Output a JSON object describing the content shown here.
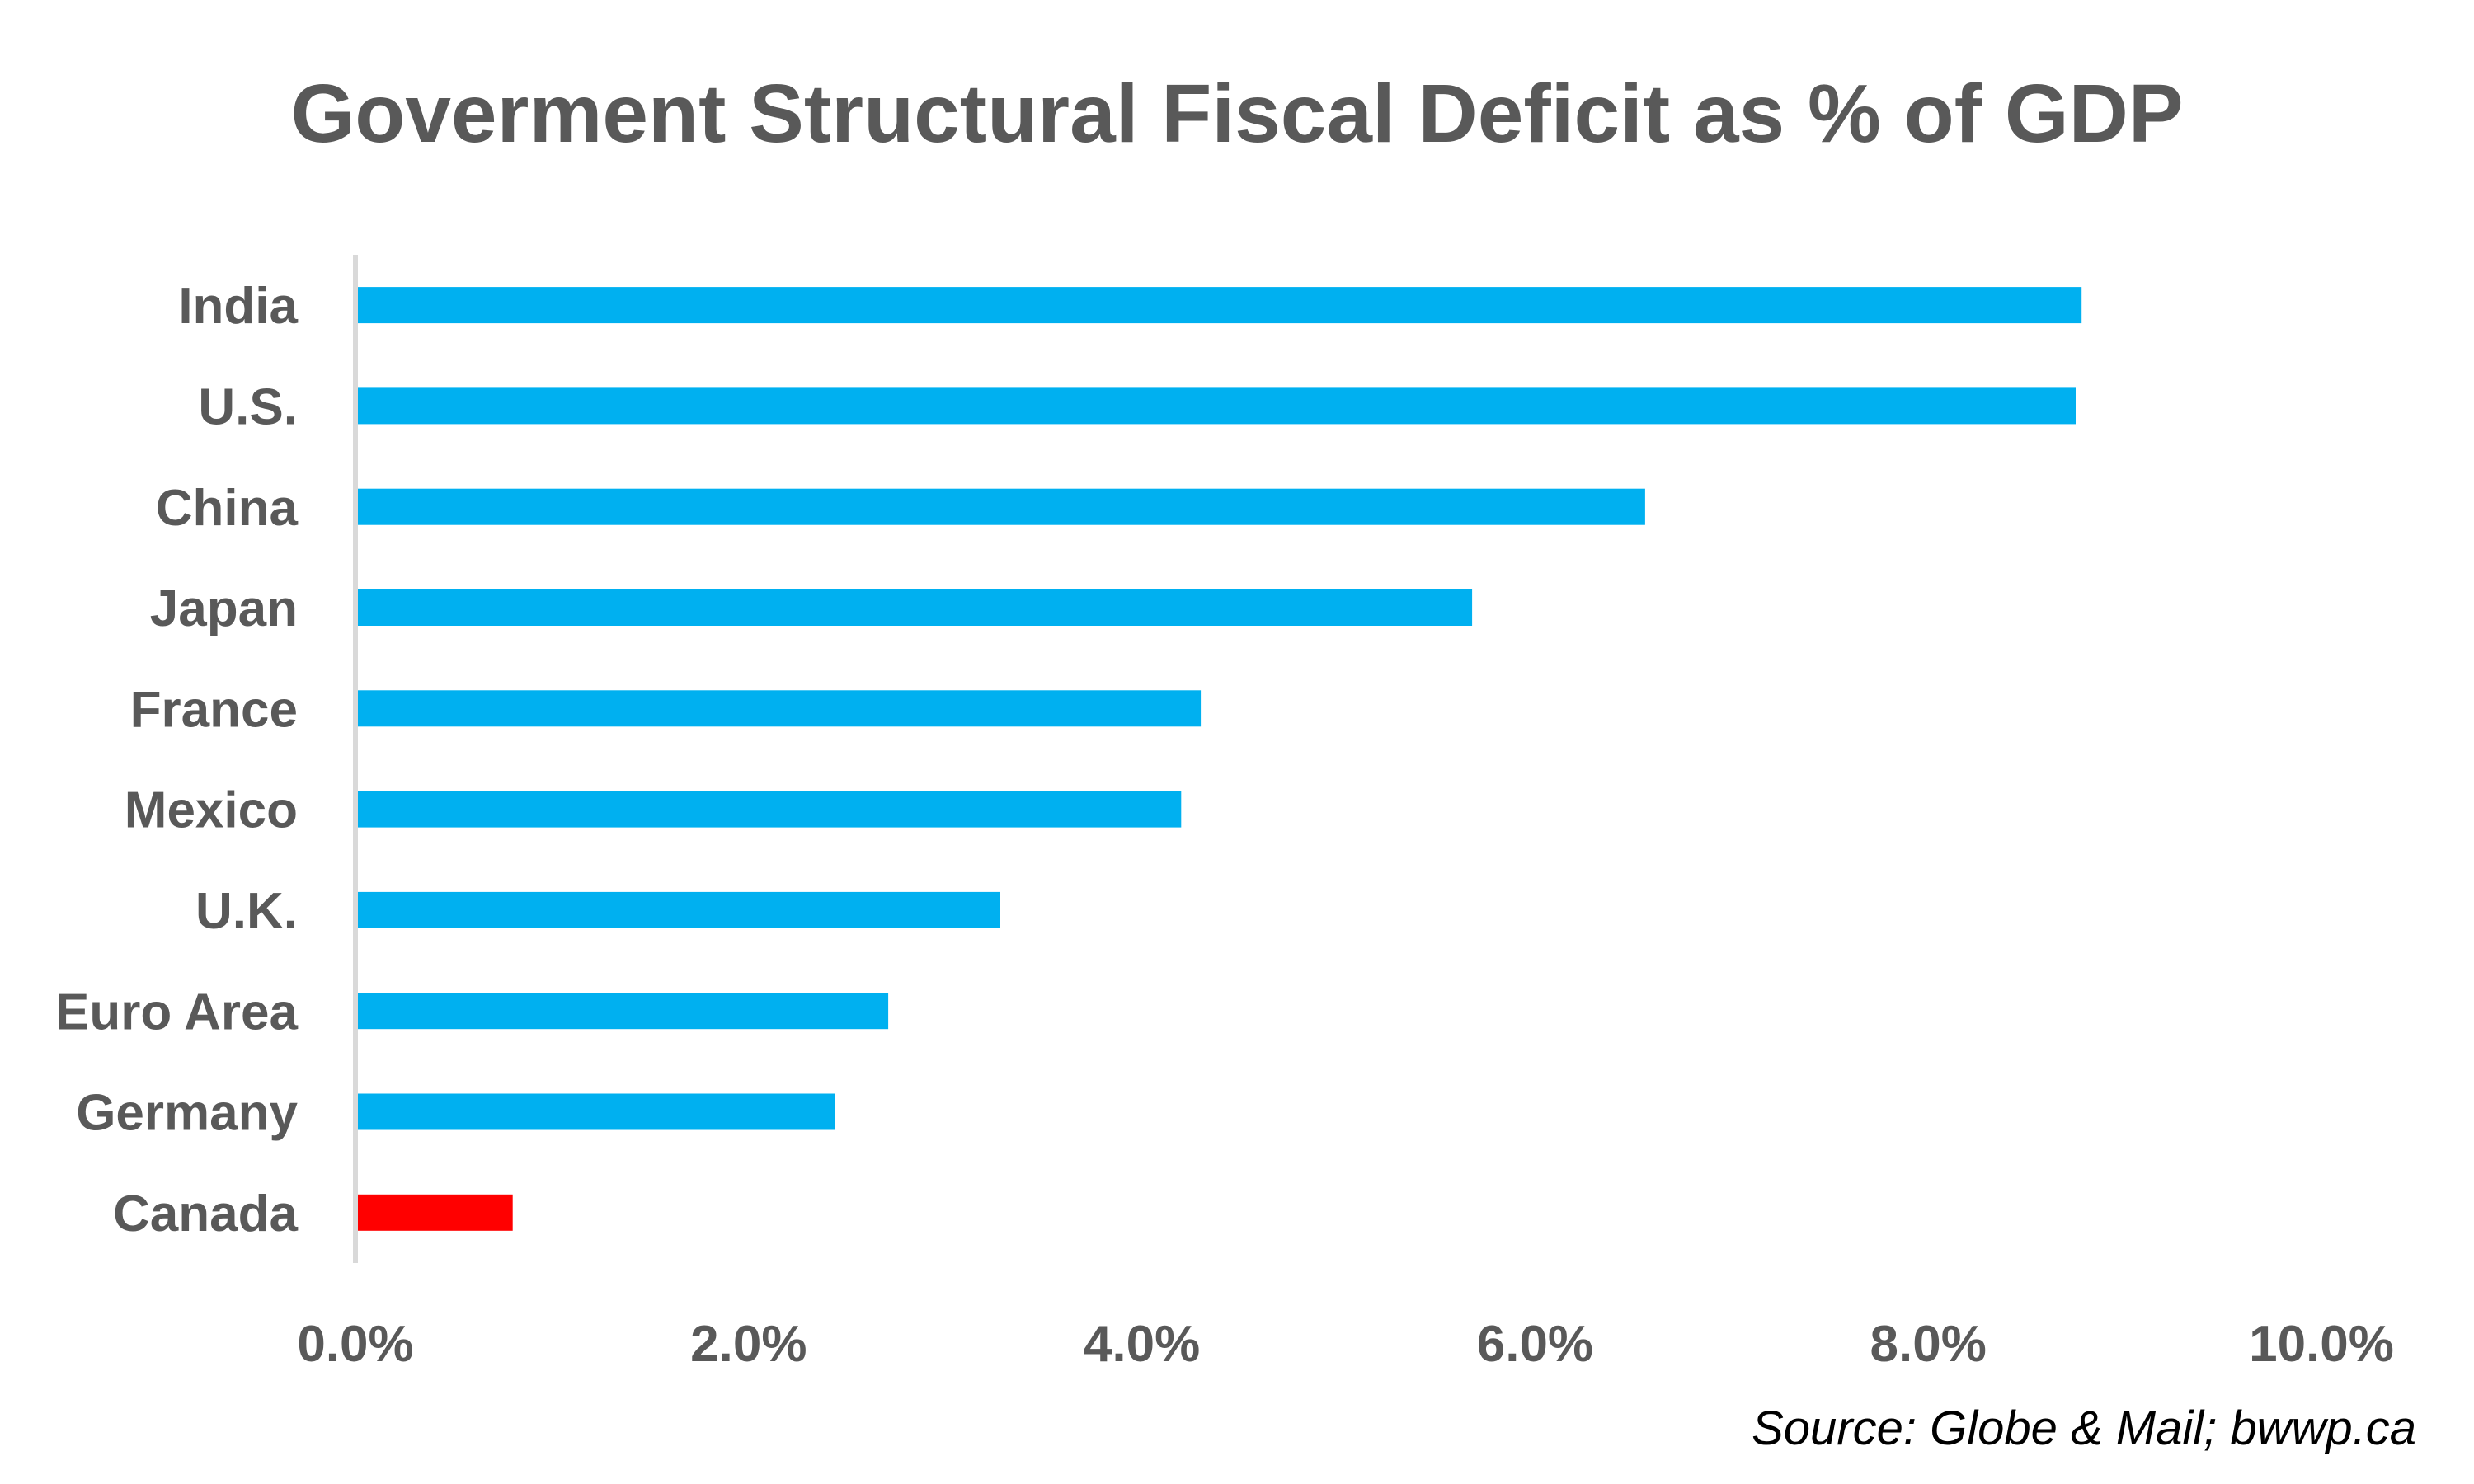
{
  "chart_data": {
    "type": "bar",
    "orientation": "horizontal",
    "title": "Goverment Structural Fiscal Deficit as % of GDP",
    "xlabel": "",
    "ylabel": "",
    "categories": [
      "India",
      "U.S.",
      "China",
      "Japan",
      "France",
      "Mexico",
      "U.K.",
      "Euro Area",
      "Germany",
      "Canada"
    ],
    "values": [
      8.78,
      8.75,
      6.56,
      5.68,
      4.3,
      4.2,
      3.28,
      2.71,
      2.44,
      0.8
    ],
    "value_unit": "% of GDP",
    "bar_colors": [
      "#00B0F0",
      "#00B0F0",
      "#00B0F0",
      "#00B0F0",
      "#00B0F0",
      "#00B0F0",
      "#00B0F0",
      "#00B0F0",
      "#00B0F0",
      "#FF0000"
    ],
    "highlight": {
      "category": "Canada",
      "color": "#FF0000"
    },
    "default_bar_color": "#00B0F0",
    "xlim": [
      0,
      10
    ],
    "x_ticks": [
      0,
      2,
      4,
      6,
      8,
      10
    ],
    "x_tick_labels": [
      "0.0%",
      "2.0%",
      "4.0%",
      "6.0%",
      "8.0%",
      "10.0%"
    ],
    "grid": false,
    "legend": "none",
    "axis_color": "#D9D9D9",
    "text_color": "#595959",
    "annotations": [
      {
        "text": "Source: Globe & Mail; bwwp.ca",
        "placement": "bottom-right"
      }
    ]
  },
  "source_note": "Source: Globe & Mail; bwwp.ca"
}
